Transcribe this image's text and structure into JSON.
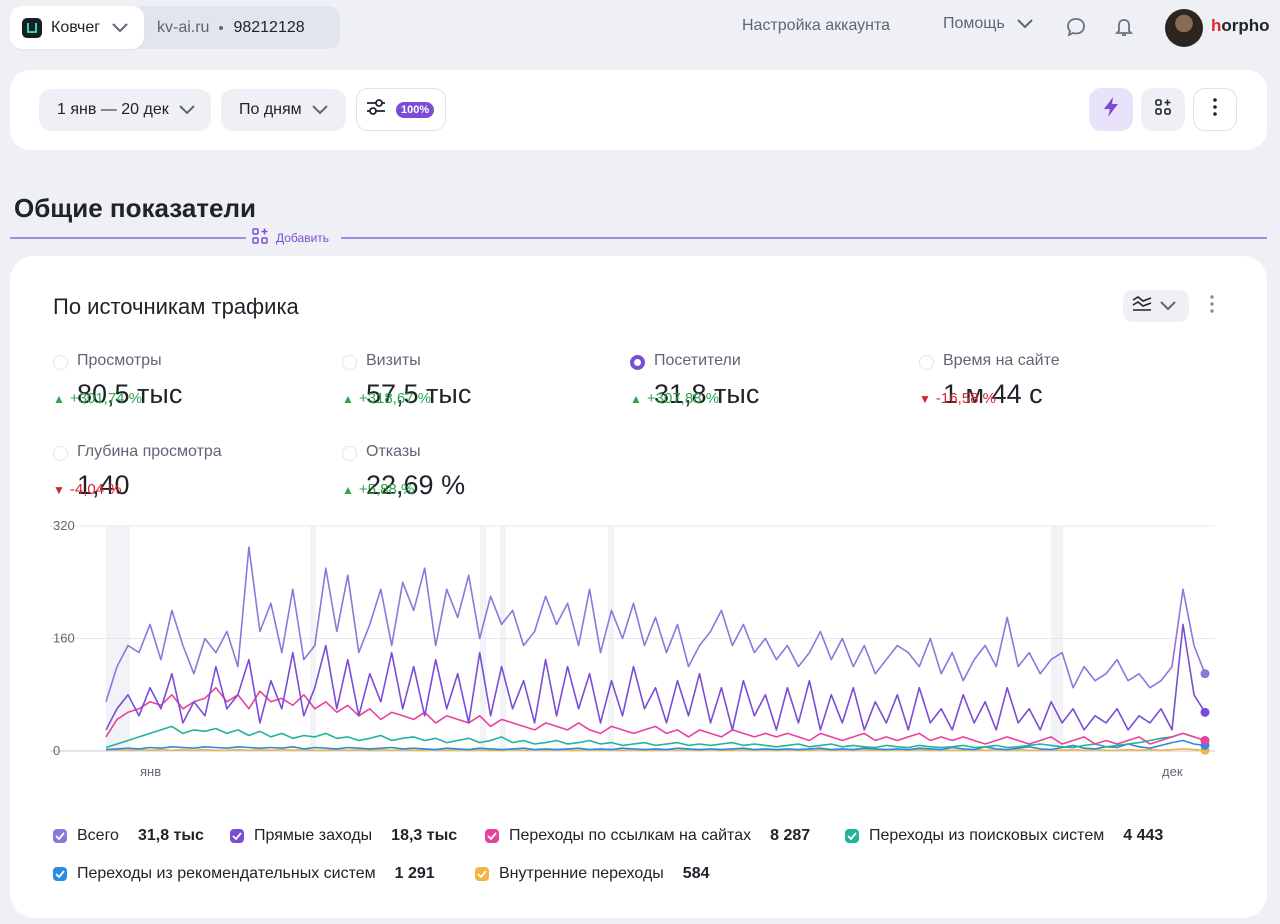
{
  "header": {
    "counter_name": "Ковчег",
    "domain": "kv-ai.ru",
    "counter_id": "98212128",
    "account_settings": "Настройка аккаунта",
    "help": "Помощь",
    "username_first": "h",
    "username_rest": "orpho"
  },
  "filters": {
    "date_range": "1 янв — 20 дек",
    "grouping": "По дням",
    "sampling_badge": "100%"
  },
  "section": {
    "title": "Общие показатели",
    "add_label": "Добавить"
  },
  "card": {
    "title": "По источникам трафика",
    "metrics": [
      {
        "label": "Просмотры",
        "value": "80,5 тыс",
        "delta": "+301,74 %",
        "direction": "up",
        "selected": false
      },
      {
        "label": "Визиты",
        "value": "57,5 тыс",
        "delta": "+318,67 %",
        "direction": "up",
        "selected": false
      },
      {
        "label": "Посетители",
        "value": "31,8 тыс",
        "delta": "+307,88 %",
        "direction": "up",
        "selected": true
      },
      {
        "label": "Время на сайте",
        "value": "1 м 44 с",
        "delta": "-16,58 %",
        "direction": "down",
        "selected": false
      },
      {
        "label": "Глубина просмотра",
        "value": "1,40",
        "delta": "-4,04 %",
        "direction": "down",
        "selected": false
      },
      {
        "label": "Отказы",
        "value": "22,69 %",
        "delta": "+5,88 %",
        "direction": "up",
        "selected": false
      }
    ],
    "legend": [
      {
        "name": "Всего",
        "value": "31,8 тыс",
        "color": "#8b78dc"
      },
      {
        "name": "Прямые заходы",
        "value": "18,3 тыс",
        "color": "#7b4dd6"
      },
      {
        "name": "Переходы по ссылкам на сайтах",
        "value": "8 287",
        "color": "#e8439c"
      },
      {
        "name": "Переходы из поисковых систем",
        "value": "4 443",
        "color": "#21b39b"
      },
      {
        "name": "Переходы из рекомендательных систем",
        "value": "1 291",
        "color": "#2c8be0"
      },
      {
        "name": "Внутренние переходы",
        "value": "584",
        "color": "#f3b442"
      }
    ]
  },
  "chart_data": {
    "type": "line",
    "x_tick_labels": [
      "янв",
      "дек"
    ],
    "y_tick_labels": [
      "0",
      "160",
      "320"
    ],
    "ylim": [
      0,
      320
    ],
    "grid": true,
    "series": [
      {
        "name": "Всего",
        "color": "#8b78dc",
        "values": [
          70,
          120,
          150,
          140,
          180,
          130,
          200,
          150,
          110,
          160,
          140,
          170,
          120,
          290,
          170,
          210,
          140,
          230,
          130,
          150,
          260,
          170,
          250,
          140,
          180,
          230,
          150,
          240,
          200,
          260,
          150,
          230,
          190,
          250,
          160,
          220,
          180,
          200,
          150,
          170,
          220,
          180,
          210,
          150,
          230,
          140,
          200,
          160,
          210,
          150,
          190,
          140,
          180,
          120,
          150,
          170,
          200,
          150,
          180,
          140,
          160,
          130,
          150,
          120,
          140,
          170,
          130,
          160,
          120,
          150,
          110,
          130,
          150,
          140,
          120,
          160,
          110,
          140,
          100,
          130,
          150,
          120,
          190,
          120,
          140,
          110,
          130,
          140,
          90,
          120,
          100,
          110,
          130,
          100,
          110,
          90,
          100,
          120,
          230,
          150,
          110
        ]
      },
      {
        "name": "Прямые заходы",
        "color": "#7b4dd6",
        "values": [
          30,
          60,
          80,
          50,
          90,
          60,
          110,
          40,
          70,
          50,
          120,
          60,
          80,
          130,
          40,
          100,
          60,
          140,
          50,
          90,
          150,
          60,
          130,
          50,
          110,
          70,
          140,
          60,
          120,
          50,
          130,
          60,
          110,
          40,
          140,
          50,
          120,
          60,
          100,
          40,
          130,
          50,
          120,
          60,
          110,
          40,
          100,
          50,
          120,
          60,
          90,
          40,
          100,
          50,
          110,
          40,
          90,
          30,
          100,
          50,
          80,
          30,
          90,
          40,
          100,
          30,
          80,
          40,
          90,
          30,
          70,
          40,
          80,
          30,
          90,
          40,
          60,
          30,
          80,
          40,
          70,
          30,
          90,
          40,
          60,
          30,
          70,
          40,
          60,
          30,
          50,
          40,
          60,
          30,
          50,
          40,
          60,
          30,
          180,
          80,
          55
        ]
      },
      {
        "name": "Переходы по ссылкам на сайтах",
        "color": "#e8439c",
        "values": [
          20,
          45,
          55,
          60,
          70,
          65,
          80,
          60,
          70,
          75,
          90,
          70,
          80,
          60,
          85,
          70,
          75,
          65,
          80,
          60,
          70,
          55,
          65,
          50,
          60,
          45,
          55,
          50,
          45,
          55,
          40,
          50,
          45,
          40,
          50,
          35,
          45,
          40,
          35,
          30,
          40,
          35,
          30,
          40,
          30,
          25,
          35,
          30,
          25,
          30,
          35,
          25,
          30,
          20,
          30,
          25,
          20,
          30,
          25,
          20,
          25,
          20,
          25,
          20,
          15,
          25,
          20,
          15,
          20,
          25,
          15,
          20,
          15,
          20,
          25,
          15,
          20,
          15,
          20,
          15,
          10,
          15,
          20,
          15,
          10,
          15,
          20,
          10,
          15,
          20,
          10,
          15,
          10,
          15,
          20,
          10,
          15,
          20,
          25,
          20,
          15
        ]
      },
      {
        "name": "Переходы из поисковых систем",
        "color": "#21b39b",
        "values": [
          5,
          10,
          15,
          20,
          25,
          30,
          35,
          25,
          30,
          28,
          32,
          25,
          30,
          22,
          28,
          20,
          25,
          18,
          22,
          20,
          25,
          18,
          20,
          15,
          18,
          22,
          15,
          18,
          20,
          15,
          18,
          12,
          15,
          18,
          12,
          15,
          20,
          12,
          15,
          10,
          12,
          15,
          10,
          12,
          15,
          10,
          12,
          8,
          10,
          12,
          8,
          10,
          12,
          8,
          10,
          8,
          10,
          12,
          8,
          10,
          8,
          6,
          8,
          10,
          6,
          8,
          10,
          6,
          8,
          6,
          5,
          8,
          6,
          5,
          8,
          6,
          5,
          6,
          8,
          5,
          6,
          8,
          5,
          6,
          8,
          10,
          8,
          6,
          5,
          8,
          10,
          6,
          8,
          10,
          12,
          15,
          18,
          20,
          25,
          20,
          15
        ]
      },
      {
        "name": "Переходы из рекомендательных систем",
        "color": "#2c8be0",
        "values": [
          2,
          3,
          4,
          3,
          5,
          4,
          6,
          5,
          4,
          6,
          5,
          4,
          6,
          5,
          4,
          5,
          4,
          6,
          3,
          5,
          4,
          3,
          5,
          4,
          3,
          4,
          5,
          3,
          4,
          3,
          2,
          4,
          3,
          2,
          4,
          3,
          2,
          3,
          4,
          2,
          3,
          2,
          3,
          4,
          2,
          3,
          2,
          4,
          3,
          2,
          3,
          2,
          4,
          3,
          2,
          3,
          2,
          3,
          4,
          2,
          3,
          2,
          3,
          2,
          3,
          4,
          2,
          3,
          2,
          4,
          3,
          2,
          3,
          2,
          4,
          3,
          2,
          5,
          3,
          2,
          6,
          3,
          2,
          4,
          6,
          3,
          2,
          5,
          8,
          4,
          3,
          6,
          5,
          10,
          6,
          4,
          8,
          12,
          15,
          10,
          8
        ]
      },
      {
        "name": "Внутренние переходы",
        "color": "#f3b442",
        "values": [
          1,
          2,
          1,
          2,
          1,
          2,
          1,
          2,
          1,
          2,
          1,
          1,
          2,
          1,
          2,
          1,
          2,
          1,
          2,
          1,
          1,
          2,
          1,
          2,
          1,
          2,
          1,
          2,
          1,
          1,
          2,
          1,
          2,
          1,
          2,
          1,
          1,
          2,
          1,
          2,
          1,
          2,
          1,
          1,
          2,
          1,
          2,
          1,
          2,
          1,
          1,
          2,
          1,
          2,
          1,
          2,
          1,
          1,
          2,
          1,
          2,
          1,
          2,
          1,
          1,
          2,
          1,
          2,
          1,
          2,
          1,
          1,
          2,
          1,
          2,
          1,
          2,
          1,
          1,
          2,
          1,
          2,
          1,
          2,
          1,
          1,
          2,
          1,
          2,
          1,
          2,
          1,
          1,
          2,
          1,
          2,
          1,
          2,
          3,
          2,
          1
        ]
      }
    ]
  }
}
